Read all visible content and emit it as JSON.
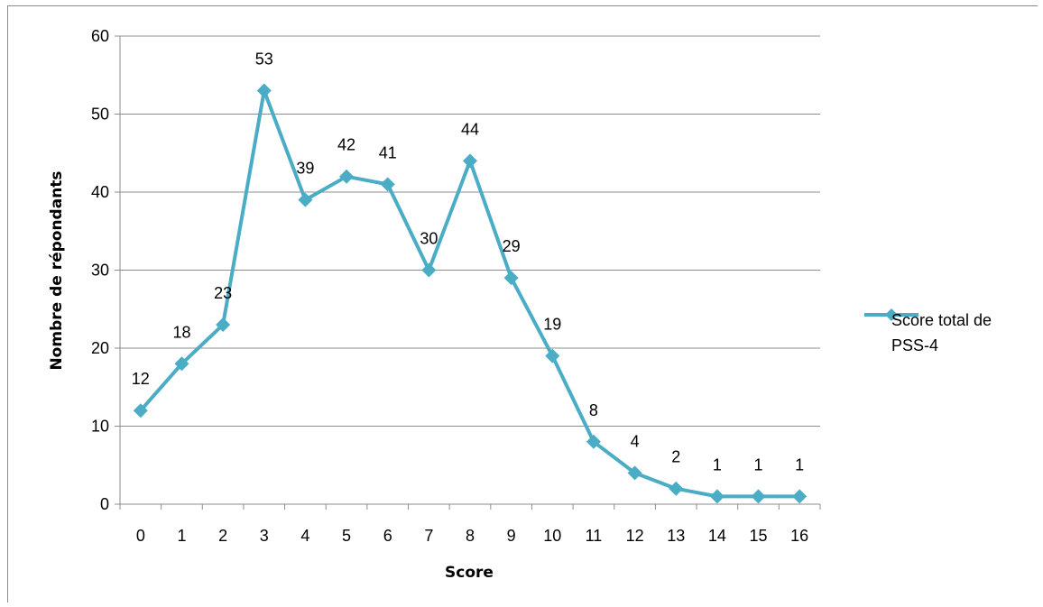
{
  "chart_data": {
    "type": "line",
    "title": "",
    "xlabel": "Score",
    "ylabel": "Nombre de répondants",
    "ylim": [
      0,
      60
    ],
    "yticks": [
      0,
      10,
      20,
      30,
      40,
      50,
      60
    ],
    "categories": [
      "0",
      "1",
      "2",
      "3",
      "4",
      "5",
      "6",
      "7",
      "8",
      "9",
      "10",
      "11",
      "12",
      "13",
      "14",
      "15",
      "16"
    ],
    "series": [
      {
        "name": "Score total de PSS-4",
        "values": [
          12,
          18,
          23,
          53,
          39,
          42,
          41,
          30,
          44,
          29,
          19,
          8,
          4,
          2,
          1,
          1,
          1
        ],
        "color": "#4bacc6",
        "marker": "diamond"
      }
    ],
    "data_labels": true,
    "grid": "horizontal",
    "legend": {
      "position": "right",
      "lines": [
        "Score total de",
        "PSS-4"
      ]
    }
  }
}
